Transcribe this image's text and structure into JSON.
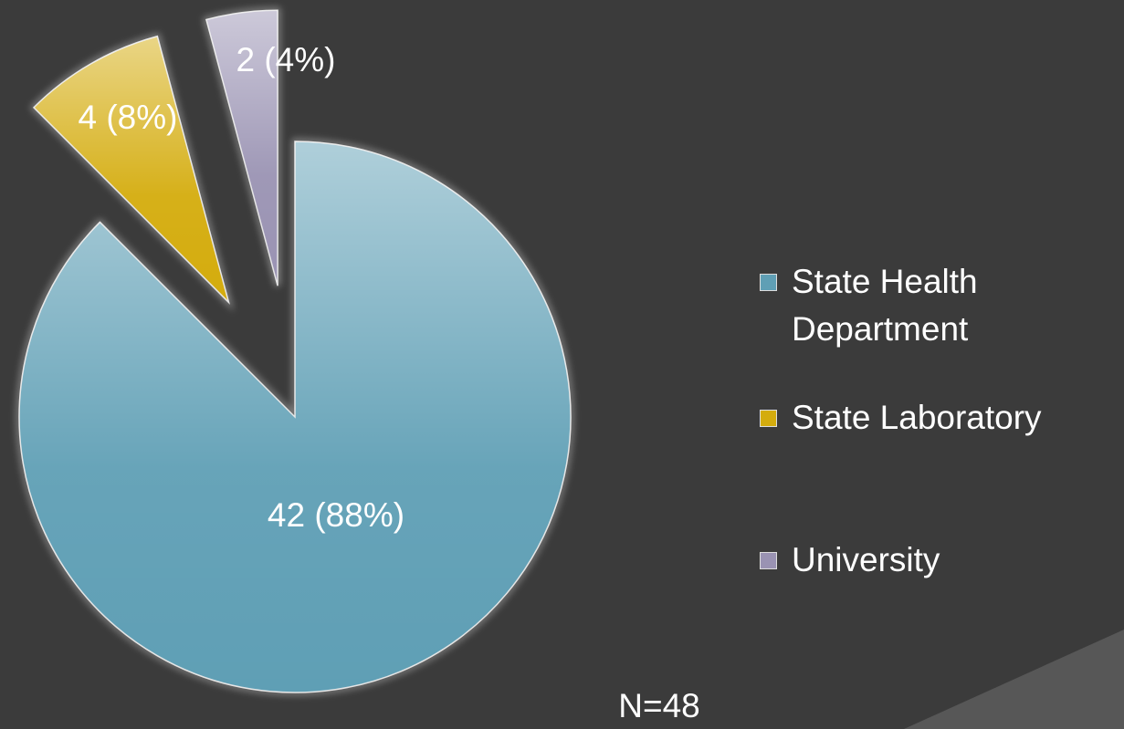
{
  "chart_data": {
    "type": "pie",
    "categories": [
      "State Health Department",
      "State Laboratory",
      "University"
    ],
    "values": [
      42,
      4,
      2
    ],
    "value_labels": [
      "42 (88%)",
      "4 (8%)",
      "2 (4%)"
    ],
    "colors": [
      "#5f9fb5",
      "#d4ac0d",
      "#9a93b3"
    ],
    "exploded": [
      false,
      true,
      true
    ],
    "legend": "right",
    "annotation": "N=48"
  }
}
